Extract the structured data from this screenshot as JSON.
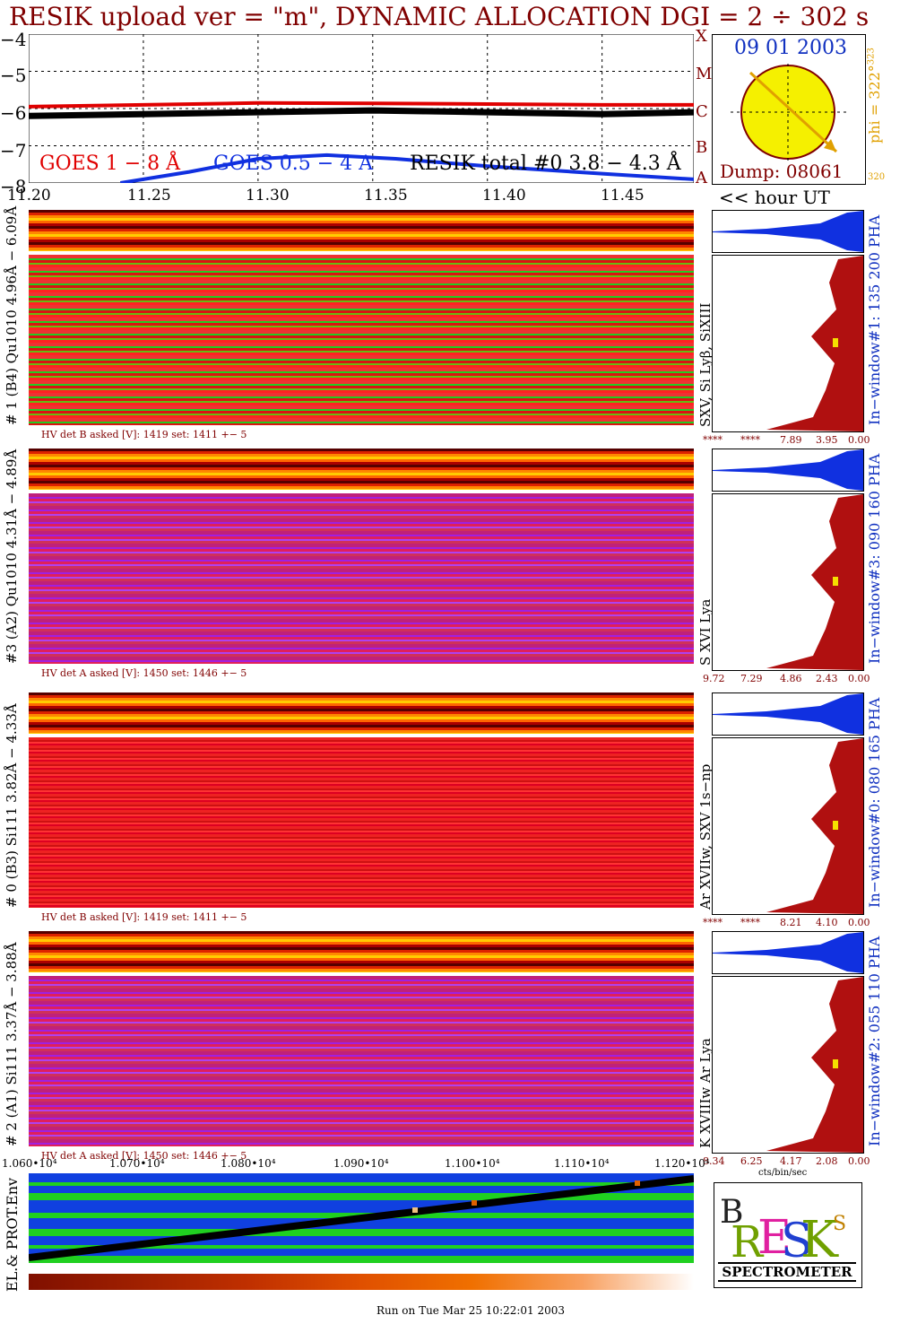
{
  "title": "RESIK upload ver = \"m\", DYNAMIC ALLOCATION  DGI =   2 ÷ 302 s",
  "chart_data": {
    "type": "line",
    "y_ticks": [
      "−4",
      "−5",
      "−6",
      "−7",
      "−8"
    ],
    "ylim": [
      -8,
      -4
    ],
    "x_ticks": [
      "11.20",
      "11.25",
      "11.30",
      "11.35",
      "11.40",
      "11.45"
    ],
    "xlim": [
      11.2,
      11.49
    ],
    "x_unit_label": "<< hour UT",
    "series": [
      {
        "name": "GOES 1 − 8 Å",
        "color": "#e00000",
        "x": [
          11.2,
          11.25,
          11.3,
          11.35,
          11.4,
          11.45,
          11.49
        ],
        "values": [
          -5.95,
          -5.9,
          -5.85,
          -5.86,
          -5.88,
          -5.9,
          -5.9
        ]
      },
      {
        "name": "GOES 0.5 − 4 A",
        "color": "#1030e0",
        "x": [
          11.24,
          11.27,
          11.3,
          11.33,
          11.36,
          11.4,
          11.45,
          11.49
        ],
        "values": [
          -8.0,
          -7.7,
          -7.35,
          -7.25,
          -7.35,
          -7.55,
          -7.75,
          -7.9
        ]
      },
      {
        "name": "RESIK total #0  3.8 − 4.3 Å",
        "color": "#000000",
        "x": [
          11.2,
          11.25,
          11.3,
          11.35,
          11.4,
          11.45,
          11.49
        ],
        "values": [
          -6.2,
          -6.15,
          -6.1,
          -6.05,
          -6.1,
          -6.15,
          -6.1
        ]
      }
    ],
    "legend": [
      "GOES 1 − 8 Å",
      "GOES 0.5 − 4 A",
      "RESIK total #0  3.8 − 4.3 Å"
    ],
    "class_labels": [
      "X",
      "M",
      "C",
      "B",
      "A"
    ]
  },
  "sun": {
    "date": "09 01 2003",
    "dump": "Dump: 08061",
    "phi": "phi = 322°",
    "phi_sup": "323",
    "bottom_left": "320"
  },
  "panels": [
    {
      "label": "# 1 (B4) Qu1010 4.96Å − 6.09Å",
      "lines": "SXV, Si Lyβ, SiXIII",
      "window": "In−window#1:  135 200 PHA",
      "hv": "HV det B asked [V]:   1419 set:   1411  +−   5",
      "ticks": [
        "****",
        "****",
        "7.89",
        "3.95",
        "0.00"
      ],
      "style": "spec-green"
    },
    {
      "label": "#3 (A2) Qu1010  4.31Å − 4.89Å",
      "lines": "S XVI Lya",
      "window": "In−window#3:  090 160 PHA",
      "hv": "HV det A asked [V]:   1450 set:   1446  +−   5",
      "ticks": [
        "9.72",
        "7.29",
        "4.86",
        "2.43",
        "0.00"
      ],
      "style": "spec-purple"
    },
    {
      "label": "# 0 (B3) Si111  3.82Å − 4.33Å",
      "lines": "Ar XVIIw,  SXV 1s−np",
      "window": "In−window#0:  080 165 PHA",
      "hv": "HV det B asked [V]:   1419 set:   1411  +−   5",
      "ticks": [
        "****",
        "****",
        "8.21",
        "4.10",
        "0.00"
      ],
      "style": "spec"
    },
    {
      "label": "# 2 (A1) Si111  3.37Å − 3.88Å",
      "lines": "K XVIIIw  Ar Lya",
      "window": "In−window#2:  055 110 PHA",
      "hv": "HV det A asked [V]:   1450 set:   1446  +−   5",
      "ticks": [
        "8.34",
        "6.25",
        "4.17",
        "2.08",
        "0.00"
      ],
      "style": "spec-purple"
    }
  ],
  "hist_unit": "cts/bin/sec",
  "env": {
    "label": "EL.& PROT.Env",
    "x_ticks": [
      "1.060•10⁴",
      "1.070•10⁴",
      "1.080•10⁴",
      "1.090•10⁴",
      "1.100•10⁴",
      "1.110•10⁴",
      "1.120•10⁴"
    ]
  },
  "logo": {
    "text": "SPECTROMETER"
  },
  "footer": "Run on Tue Mar 25 10:22:01 2003"
}
